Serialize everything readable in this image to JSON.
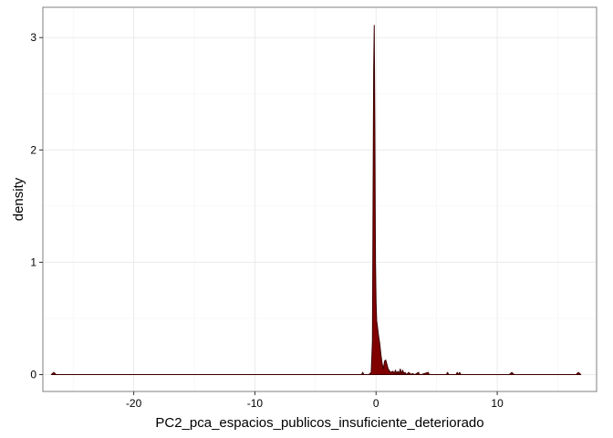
{
  "chart_data": {
    "type": "area",
    "title": "",
    "xlabel": "PC2_pca_espacios_publicos_insuficiente_deteriorado",
    "ylabel": "density",
    "xlim": [
      -27.5,
      18.2
    ],
    "ylim": [
      -0.15,
      3.27
    ],
    "x_ticks": [
      -20,
      -10,
      0,
      10
    ],
    "x_tick_labels": [
      "-20",
      "-10",
      "0",
      "10"
    ],
    "y_ticks": [
      0,
      1,
      2,
      3
    ],
    "y_tick_labels": [
      "0",
      "1",
      "2",
      "3"
    ],
    "grid": true,
    "legend": "none",
    "fill_color": "#800000",
    "line_color": "#3d0000",
    "x": [
      -26.8,
      -26.6,
      -26.4,
      -20,
      -10,
      -2.0,
      -1.2,
      -1.1,
      -1.0,
      -0.6,
      -0.4,
      -0.3,
      -0.25,
      -0.2,
      -0.15,
      -0.1,
      -0.05,
      0.0,
      0.05,
      0.1,
      0.2,
      0.3,
      0.4,
      0.5,
      0.6,
      0.7,
      0.8,
      0.9,
      1.0,
      1.2,
      1.4,
      1.5,
      1.6,
      1.7,
      1.8,
      1.9,
      2.0,
      2.1,
      2.2,
      2.3,
      2.4,
      2.5,
      2.7,
      2.9,
      3.0,
      3.2,
      3.5,
      3.6,
      3.7,
      4.0,
      4.3,
      4.4,
      4.5,
      5.0,
      5.8,
      5.9,
      6.0,
      6.6,
      6.7,
      6.8,
      6.9,
      7.0,
      7.1,
      7.5,
      11.0,
      11.2,
      11.4,
      16.5,
      16.7,
      16.9
    ],
    "y": [
      0.0,
      0.02,
      0.0,
      0.0,
      0.0,
      0.0,
      0.0,
      0.02,
      0.0,
      0.0,
      0.02,
      0.3,
      1.5,
      2.7,
      3.11,
      2.2,
      1.0,
      0.65,
      0.48,
      0.44,
      0.35,
      0.28,
      0.18,
      0.1,
      0.05,
      0.12,
      0.13,
      0.09,
      0.05,
      0.02,
      0.03,
      0.01,
      0.04,
      0.01,
      0.03,
      0.01,
      0.05,
      0.01,
      0.04,
      0.01,
      0.02,
      0.0,
      0.02,
      0.0,
      0.01,
      0.0,
      0.02,
      0.0,
      0.0,
      0.01,
      0.02,
      0.0,
      0.0,
      0.0,
      0.0,
      0.02,
      0.0,
      0.0,
      0.02,
      0.0,
      0.02,
      0.0,
      0.0,
      0.0,
      0.0,
      0.02,
      0.0,
      0.0,
      0.02,
      0.0
    ]
  }
}
